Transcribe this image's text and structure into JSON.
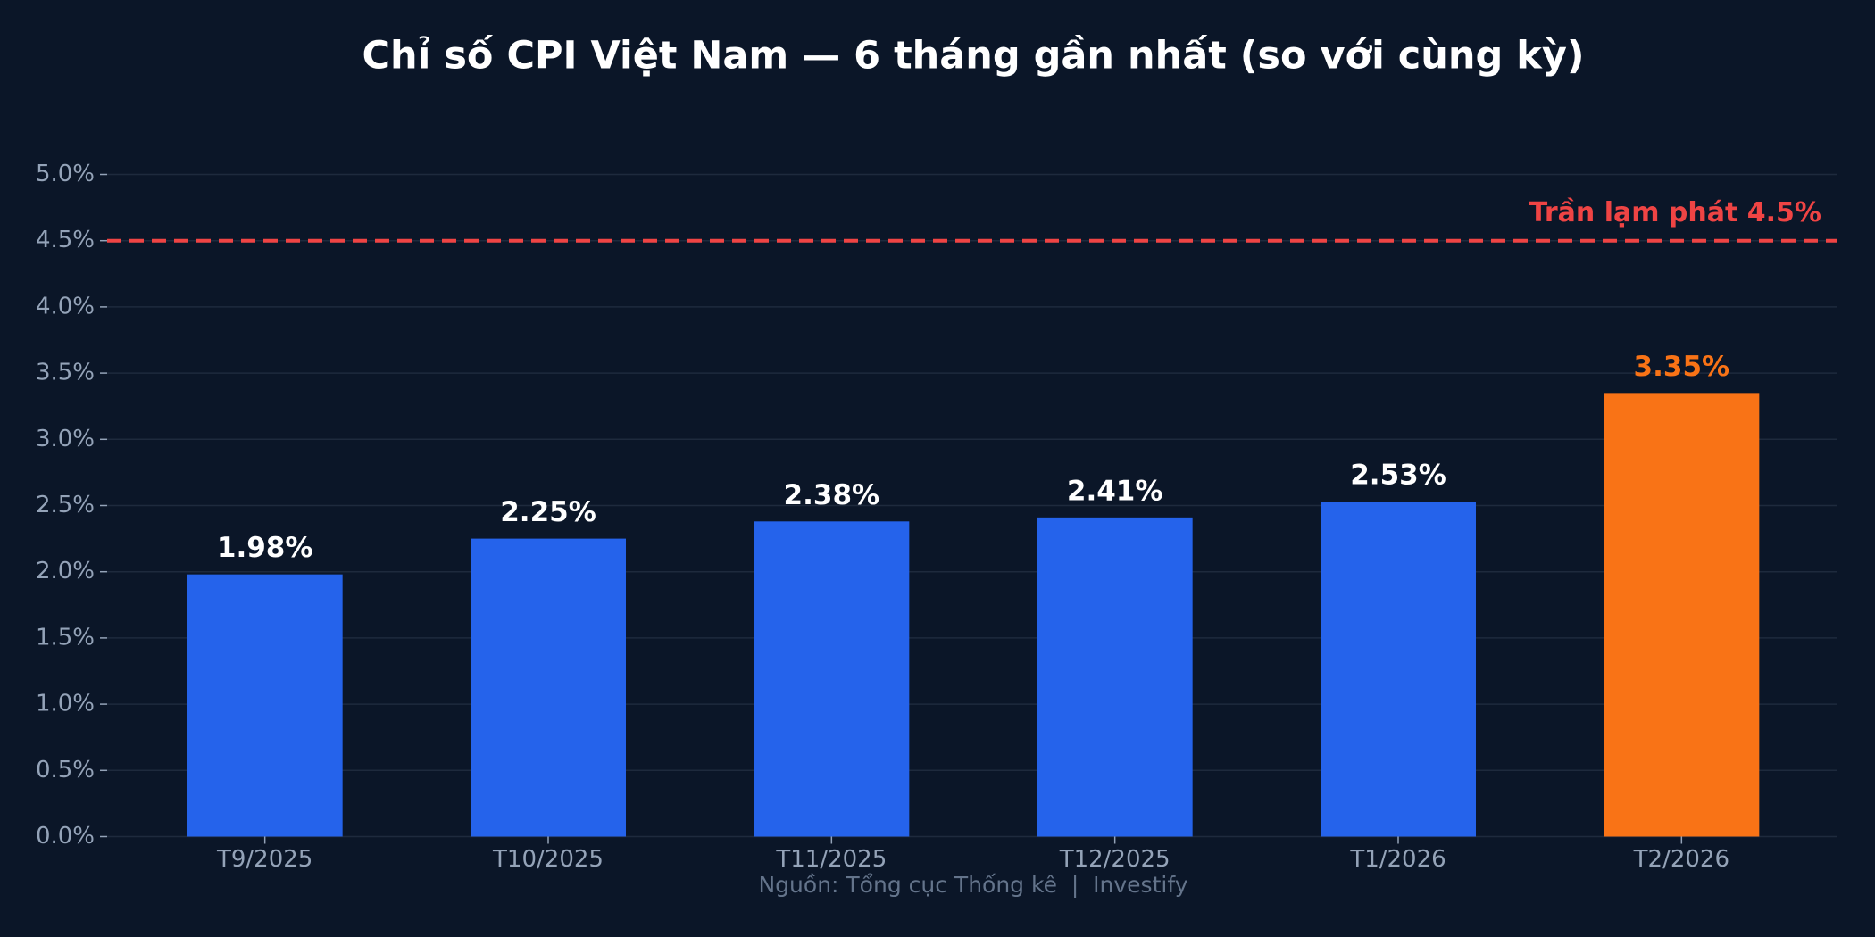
{
  "chart_data": {
    "type": "bar",
    "title": "Chỉ số CPI Việt Nam — 6 tháng gần nhất (so với cùng kỳ)",
    "categories": [
      "T9/2025",
      "T10/2025",
      "T11/2025",
      "T12/2025",
      "T1/2026",
      "T2/2026"
    ],
    "values": [
      1.98,
      2.25,
      2.38,
      2.41,
      2.53,
      3.35
    ],
    "value_labels": [
      "1.98%",
      "2.25%",
      "2.38%",
      "2.41%",
      "2.53%",
      "3.35%"
    ],
    "colors": [
      "#2563eb",
      "#2563eb",
      "#2563eb",
      "#2563eb",
      "#2563eb",
      "#f97316"
    ],
    "value_label_colors": [
      "#ffffff",
      "#ffffff",
      "#ffffff",
      "#ffffff",
      "#ffffff",
      "#f97316"
    ],
    "ylim": [
      0,
      5.0
    ],
    "yticks": [
      {
        "value": 0,
        "label": "0.0%"
      },
      {
        "value": 0.5,
        "label": "0.5%"
      },
      {
        "value": 1.0,
        "label": "1.0%"
      },
      {
        "value": 1.5,
        "label": "1.5%"
      },
      {
        "value": 2.0,
        "label": "2.0%"
      },
      {
        "value": 2.5,
        "label": "2.5%"
      },
      {
        "value": 3.0,
        "label": "3.0%"
      },
      {
        "value": 3.5,
        "label": "3.5%"
      },
      {
        "value": 4.0,
        "label": "4.0%"
      },
      {
        "value": 4.5,
        "label": "4.5%"
      },
      {
        "value": 5.0,
        "label": "5.0%"
      }
    ],
    "grid": true,
    "reference_line": {
      "value": 4.5,
      "label": "Trần lạm phát 4.5%",
      "color": "#ef4444"
    },
    "source": "Nguồn: Tổng cục Thống kê  |  Investify"
  }
}
